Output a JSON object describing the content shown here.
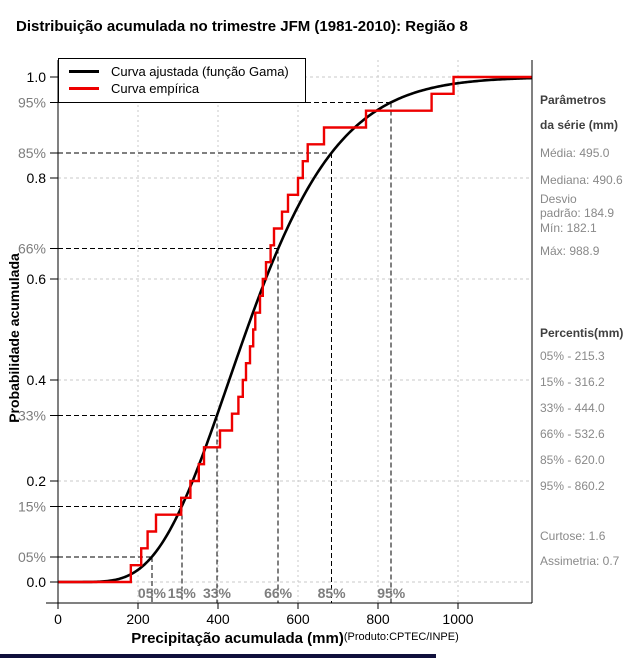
{
  "title": "Distribuição acumulada no trimestre JFM (1981-2010): Região 8",
  "legend": {
    "fitted": "Curva ajustada (função Gama)",
    "empirical": "Curva empírica"
  },
  "axes": {
    "y_label": "Probabilidade acumulada",
    "x_label": "Precipitação acumulada (mm)",
    "source_note": "(Produto:CPTEC/INPE)",
    "x_ticks": [
      {
        "v": 0,
        "label": "0"
      },
      {
        "v": 200,
        "label": "200"
      },
      {
        "v": 400,
        "label": "400"
      },
      {
        "v": 600,
        "label": "600"
      },
      {
        "v": 800,
        "label": "800"
      },
      {
        "v": 1000,
        "label": "1000"
      }
    ],
    "y_ticks": [
      {
        "v": 0.0,
        "label": "0.0"
      },
      {
        "v": 0.2,
        "label": "0.2"
      },
      {
        "v": 0.4,
        "label": "0.4"
      },
      {
        "v": 0.6,
        "label": "0.6"
      },
      {
        "v": 0.8,
        "label": "0.8"
      },
      {
        "v": 1.0,
        "label": "1.0"
      }
    ],
    "y_percent_ticks": [
      {
        "p": 0.05,
        "label": "05%"
      },
      {
        "p": 0.15,
        "label": "15%"
      },
      {
        "p": 0.33,
        "label": "33%"
      },
      {
        "p": 0.66,
        "label": "66%"
      },
      {
        "p": 0.85,
        "label": "85%"
      },
      {
        "p": 0.95,
        "label": "95%"
      }
    ]
  },
  "sidebar": {
    "params_header_line1": "Parâmetros",
    "params_header_line2": "da série (mm)",
    "params": [
      {
        "text": "Média: 495.0"
      },
      {
        "text": "Mediana: 490.6"
      },
      {
        "line1": "Desvio",
        "line2": "padrão: 184.9"
      },
      {
        "text": "Mín: 182.1"
      },
      {
        "text": "Máx: 988.9"
      }
    ],
    "percentiles_header": "Percentis(mm)",
    "percentiles": [
      {
        "text": "05% - 215.3"
      },
      {
        "text": "15% - 316.2"
      },
      {
        "text": "33% - 444.0"
      },
      {
        "text": "66% - 532.6"
      },
      {
        "text": "85% - 620.0"
      },
      {
        "text": "95% - 860.2"
      }
    ],
    "extra": [
      {
        "text": "Curtose: 1.6"
      },
      {
        "text": "Assimetria: 0.7"
      }
    ]
  },
  "colors": {
    "fitted_curve": "#000000",
    "empirical_curve": "#ee0000",
    "grid": "#c8c8c8",
    "guide": "#000000",
    "gray_text": "#7d7d7d",
    "footer_bar": "#10103c"
  },
  "chart_data": {
    "type": "line",
    "title": "Distribuição acumulada no trimestre JFM (1981-2010): Região 8",
    "xlabel": "Precipitação acumulada (mm)",
    "ylabel": "Probabilidade acumulada",
    "xlim": [
      0,
      1185
    ],
    "ylim": [
      0,
      1.0
    ],
    "grid": true,
    "x_gridlines": [
      0,
      200,
      400,
      600,
      800,
      1000
    ],
    "y_gridlines": [
      0.0,
      0.2,
      0.4,
      0.6,
      0.8,
      1.0
    ],
    "series": [
      {
        "name": "Curva ajustada (função Gama)",
        "model": "gamma_cdf",
        "mean": 495.0,
        "sd": 184.9,
        "color": "#000000"
      },
      {
        "name": "Curva empírica",
        "model": "ecdf_step",
        "n": 30,
        "values_est": [
          182.1,
          208,
          224,
          245,
          308,
          331,
          352,
          365,
          405,
          435,
          451,
          462,
          470,
          480,
          488,
          493.2,
          505,
          512,
          520,
          531.5,
          540,
          560,
          575,
          600,
          612,
          624.3,
          665,
          770,
          934,
          988.9
        ],
        "color": "#ee0000"
      }
    ],
    "percentile_guides": {
      "probs": [
        0.05,
        0.15,
        0.33,
        0.66,
        0.85,
        0.95
      ],
      "labels": [
        "05%",
        "15%",
        "33%",
        "66%",
        "85%",
        "95%"
      ]
    },
    "stats": {
      "media": 495.0,
      "mediana": 490.6,
      "desvio_padrao": 184.9,
      "min": 182.1,
      "max": 988.9,
      "curtose": 1.6,
      "assimetria": 0.7
    },
    "percentis_mm": {
      "05%": 215.3,
      "15%": 316.2,
      "33%": 444.0,
      "66%": 532.6,
      "85%": 620.0,
      "95%": 860.2
    }
  }
}
